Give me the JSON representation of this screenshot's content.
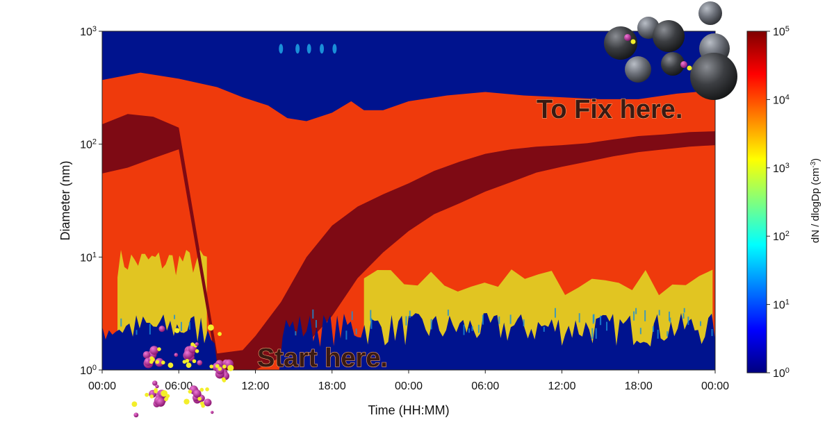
{
  "chart_data": {
    "type": "heatmap",
    "title": "",
    "xlabel": "Time (HH:MM)",
    "ylabel": "Diameter  (nm)",
    "x_ticks": [
      "00:00",
      "06:00",
      "12:00",
      "18:00",
      "00:00",
      "06:00",
      "12:00",
      "18:00",
      "00:00"
    ],
    "x_tick_hours": [
      0,
      6,
      12,
      18,
      24,
      30,
      36,
      42,
      48
    ],
    "xlim_hours": [
      0,
      48
    ],
    "y_scale": "log",
    "y_tick_exponents": [
      0,
      1,
      2,
      3
    ],
    "ylim_nm": [
      1,
      1000
    ],
    "colorbar": {
      "label_main": "dN / dlogDp (cm",
      "label_exp": "-3",
      "label_close": ")",
      "scale": "log",
      "tick_exponents": [
        0,
        1,
        2,
        3,
        4,
        5
      ],
      "range": [
        1,
        100000
      ],
      "colormap": "jet"
    },
    "band_colors": {
      "background": "#00138e",
      "high": "#ef3a0c",
      "peak": "#7e0a14",
      "mid": "#e1c522",
      "low_edge": "#1a8fd8"
    },
    "bands": {
      "upper_edge": {
        "hours": [
          0,
          3,
          6,
          9,
          11,
          13,
          14.5,
          16,
          18,
          19.5,
          20.5,
          22,
          24,
          27,
          30,
          33,
          36,
          39,
          42,
          45,
          48
        ],
        "diam_nm": [
          370,
          430,
          380,
          320,
          260,
          220,
          170,
          160,
          190,
          240,
          200,
          200,
          240,
          270,
          290,
          270,
          260,
          250,
          250,
          280,
          300
        ]
      },
      "growth_core_top": {
        "hours": [
          0,
          2,
          4,
          6,
          9,
          11,
          12,
          14,
          16,
          18,
          20,
          22,
          24,
          26,
          28,
          30,
          32,
          34,
          36,
          38,
          40,
          42,
          44,
          46,
          48
        ],
        "diam_nm": [
          150,
          185,
          175,
          140,
          1.4,
          1.5,
          2.0,
          4.0,
          10,
          19,
          28,
          36,
          45,
          58,
          70,
          82,
          90,
          95,
          98,
          102,
          110,
          118,
          122,
          128,
          130
        ]
      },
      "growth_core_bottom": {
        "hours": [
          0,
          2,
          4,
          6,
          9,
          11,
          12,
          14,
          16,
          18,
          20,
          22,
          24,
          26,
          28,
          30,
          32,
          34,
          36,
          38,
          40,
          42,
          44,
          46,
          48
        ],
        "diam_nm": [
          55,
          62,
          75,
          90,
          1.0,
          1.0,
          1.0,
          1.3,
          1.7,
          3.0,
          6.5,
          11,
          17,
          24,
          30,
          38,
          46,
          56,
          63,
          70,
          78,
          85,
          90,
          95,
          98
        ]
      }
    }
  },
  "annotations": {
    "fix": "To Fix here.",
    "start": "Start here."
  }
}
